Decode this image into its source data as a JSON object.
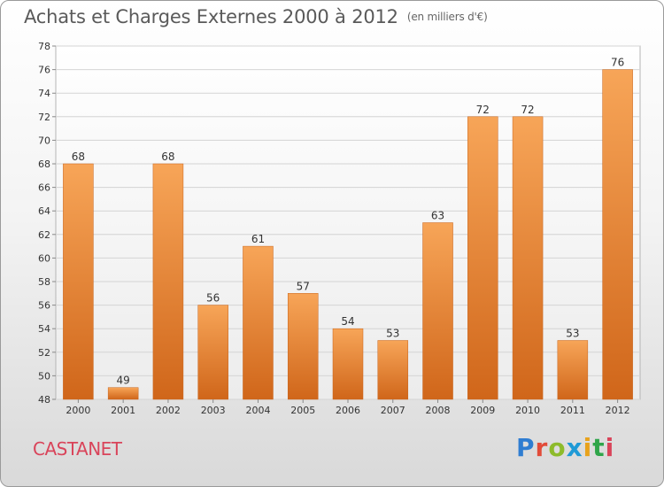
{
  "chart_data": {
    "type": "bar",
    "title": "Achats et Charges Externes 2000 à 2012",
    "unit_label": "(en milliers d'€)",
    "categories": [
      "2000",
      "2001",
      "2002",
      "2003",
      "2004",
      "2005",
      "2006",
      "2007",
      "2008",
      "2009",
      "2010",
      "2011",
      "2012"
    ],
    "values": [
      68,
      49,
      68,
      56,
      61,
      57,
      54,
      53,
      63,
      72,
      72,
      53,
      76
    ],
    "ylim": [
      48,
      78
    ],
    "yticks": [
      48,
      50,
      52,
      54,
      56,
      58,
      60,
      62,
      64,
      66,
      68,
      70,
      72,
      74,
      76,
      78
    ],
    "grid": true,
    "bar_color_top": "#f7a558",
    "bar_color_bottom": "#d0661a",
    "xlabel": "",
    "ylabel": ""
  },
  "commune": "CASTANET",
  "logo": {
    "text": "Proxiti"
  }
}
